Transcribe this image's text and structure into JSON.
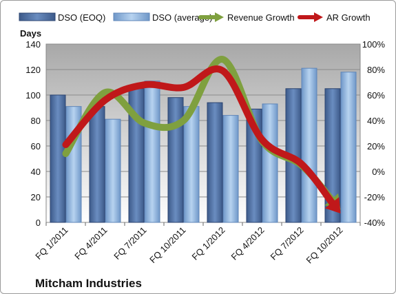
{
  "chart_data": {
    "type": "bar",
    "title": "",
    "company": "Mitcham Industries",
    "ylabel": "Days",
    "ylim": [
      0,
      140
    ],
    "y_ticks": [
      "0",
      "20",
      "40",
      "60",
      "80",
      "100",
      "120",
      "140"
    ],
    "y2lim": [
      -40,
      100
    ],
    "y2_ticks": [
      "-40%",
      "-20%",
      "0%",
      "20%",
      "40%",
      "60%",
      "80%",
      "100%"
    ],
    "categories": [
      "FQ 1/2011",
      "FQ 4/2011",
      "FQ 7/2011",
      "FQ 10/2011",
      "FQ 1/2012",
      "FQ 4/2012",
      "FQ 7/2012",
      "FQ 10/2012"
    ],
    "grid": true,
    "legend_position": "top",
    "series": [
      {
        "name": "DSO (EOQ)",
        "kind": "bar",
        "axis": "left",
        "color": "#4f6fa0",
        "values": [
          100,
          91,
          105,
          98,
          94,
          89,
          105,
          105
        ]
      },
      {
        "name": "DSO (average)",
        "kind": "bar",
        "axis": "left",
        "color": "#8fb3dc",
        "values": [
          91,
          81,
          111,
          91,
          84,
          93,
          121,
          118
        ]
      },
      {
        "name": "Revenue Growth",
        "kind": "line",
        "axis": "right",
        "color": "#7fa03f",
        "values": [
          14,
          62,
          38,
          40,
          88,
          24,
          5,
          -30
        ]
      },
      {
        "name": "AR Growth",
        "kind": "line",
        "axis": "right",
        "color": "#c0181a",
        "values": [
          21,
          56,
          68,
          66,
          79,
          25,
          6,
          -33
        ]
      }
    ]
  }
}
